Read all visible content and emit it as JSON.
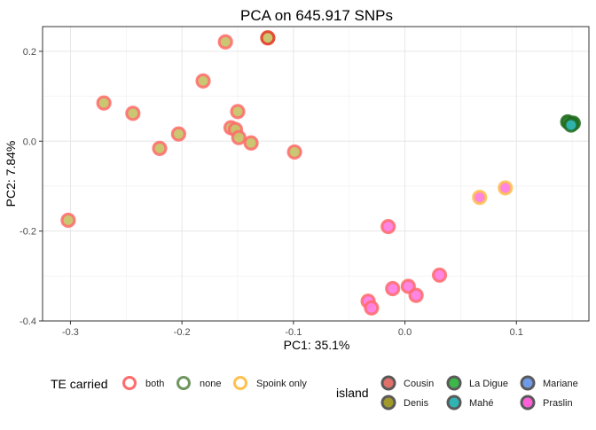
{
  "chart_data": {
    "type": "scatter",
    "title": "PCA on 645.917 SNPs",
    "xlabel": "PC1: 35.1%",
    "ylabel": "PC2: 7.84%",
    "xlim": [
      -0.325,
      0.165
    ],
    "ylim": [
      -0.4,
      0.255
    ],
    "x_ticks": [
      -0.3,
      -0.2,
      -0.1,
      0.0,
      0.1
    ],
    "x_tick_labels": [
      "-0.3",
      "-0.2",
      "-0.1",
      "0.0",
      "0.1"
    ],
    "y_ticks": [
      -0.4,
      -0.2,
      0.0,
      0.2
    ],
    "y_tick_labels": [
      "-0.4",
      "-0.2",
      "0.0",
      "0.2"
    ],
    "grid": true,
    "legend_position": "bottom",
    "legends": {
      "te": {
        "title": "TE carried",
        "entries": [
          {
            "label": "both",
            "color": "#ff6b6b"
          },
          {
            "label": "none",
            "color": "#5a8a4a"
          },
          {
            "label": "Spoink only",
            "color": "#ffc04d"
          }
        ]
      },
      "island": {
        "title": "island",
        "entries": [
          {
            "label": "Cousin",
            "color": "#e0706a"
          },
          {
            "label": "La Digue",
            "color": "#3cb84a"
          },
          {
            "label": "Mariane",
            "color": "#6f9ae8"
          },
          {
            "label": "Denis",
            "color": "#a09a2a"
          },
          {
            "label": "Mahé",
            "color": "#2fb4b4"
          },
          {
            "label": "Praslin",
            "color": "#ff5fd8"
          }
        ]
      }
    },
    "points": [
      {
        "x": -0.123,
        "y": 0.23,
        "te": "both",
        "island": "Denis",
        "ring": "#e4321f"
      },
      {
        "x": -0.161,
        "y": 0.221,
        "te": "both",
        "island": "Denis"
      },
      {
        "x": -0.181,
        "y": 0.134,
        "te": "both",
        "island": "Denis"
      },
      {
        "x": -0.27,
        "y": 0.085,
        "te": "both",
        "island": "Denis"
      },
      {
        "x": -0.244,
        "y": 0.062,
        "te": "both",
        "island": "Denis"
      },
      {
        "x": -0.15,
        "y": 0.066,
        "te": "both",
        "island": "Denis"
      },
      {
        "x": -0.156,
        "y": 0.03,
        "te": "both",
        "island": "Denis"
      },
      {
        "x": -0.152,
        "y": 0.026,
        "te": "both",
        "island": "Denis"
      },
      {
        "x": -0.203,
        "y": 0.016,
        "te": "both",
        "island": "Denis"
      },
      {
        "x": -0.149,
        "y": 0.008,
        "te": "both",
        "island": "Denis"
      },
      {
        "x": -0.138,
        "y": -0.004,
        "te": "both",
        "island": "Denis"
      },
      {
        "x": -0.22,
        "y": -0.016,
        "te": "both",
        "island": "Denis"
      },
      {
        "x": -0.099,
        "y": -0.024,
        "te": "both",
        "island": "Denis"
      },
      {
        "x": -0.302,
        "y": -0.176,
        "te": "both",
        "island": "Denis"
      },
      {
        "x": 0.09,
        "y": -0.104,
        "te": "Spoink only",
        "island": "Praslin"
      },
      {
        "x": 0.067,
        "y": -0.125,
        "te": "Spoink only",
        "island": "Praslin"
      },
      {
        "x": -0.015,
        "y": -0.19,
        "te": "both",
        "island": "Praslin"
      },
      {
        "x": 0.031,
        "y": -0.298,
        "te": "both",
        "island": "Praslin"
      },
      {
        "x": 0.003,
        "y": -0.323,
        "te": "both",
        "island": "Praslin"
      },
      {
        "x": -0.011,
        "y": -0.328,
        "te": "both",
        "island": "Praslin"
      },
      {
        "x": 0.01,
        "y": -0.343,
        "te": "both",
        "island": "Praslin"
      },
      {
        "x": -0.033,
        "y": -0.356,
        "te": "both",
        "island": "Praslin"
      },
      {
        "x": -0.03,
        "y": -0.371,
        "te": "both",
        "island": "Praslin"
      },
      {
        "x": 0.146,
        "y": 0.043,
        "te": "none",
        "island": "La Digue",
        "ring": "#1f6b1f",
        "fill": "#2a7a2a"
      },
      {
        "x": 0.151,
        "y": 0.04,
        "te": "none",
        "island": "La Digue",
        "ring": "#1f6b1f",
        "fill": "#2a7a2a"
      },
      {
        "x": 0.149,
        "y": 0.036,
        "te": "none",
        "island": "Mahé",
        "ring": "#1f6b1f",
        "fill": "#2fb4b4"
      }
    ]
  }
}
